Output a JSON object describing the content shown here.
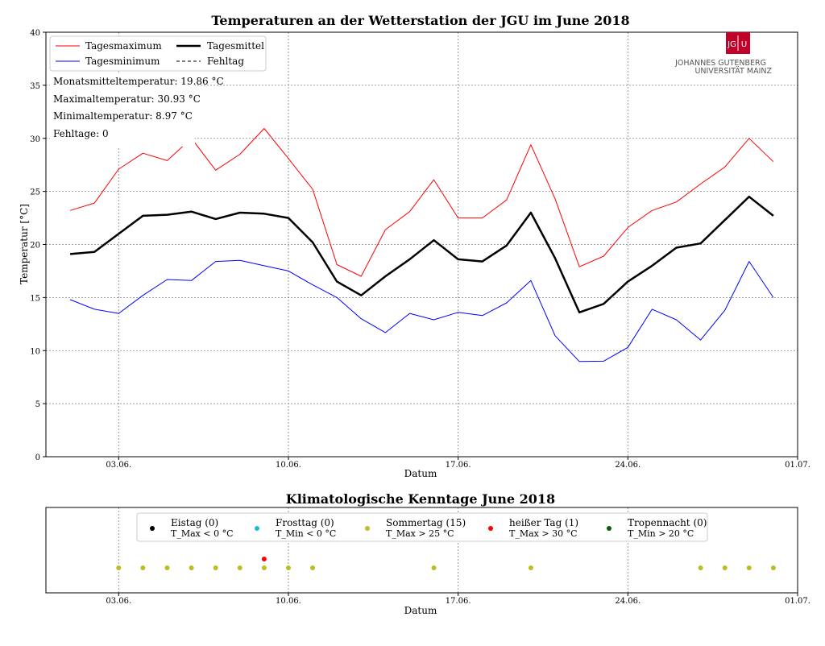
{
  "chart_data": [
    {
      "type": "line",
      "title": "Temperaturen an der Wetterstation der JGU im June 2018",
      "xlabel": "Datum",
      "ylabel": "Temperatur [°C]",
      "x_tick_labels": [
        "03.06.",
        "10.06.",
        "17.06.",
        "24.06.",
        "01.07."
      ],
      "y_ticks": [
        0,
        5,
        10,
        15,
        20,
        25,
        30,
        35,
        40
      ],
      "xlim": [
        0,
        31
      ],
      "ylim": [
        0,
        40
      ],
      "grid": true,
      "legend_position": "top-left",
      "legend": [
        {
          "label": "Tagesmaximum",
          "color": "#ff0000"
        },
        {
          "label": "Tagesmittel",
          "color": "#000000"
        },
        {
          "label": "Tagesminimum",
          "color": "#0000ff"
        },
        {
          "label": "Fehltag",
          "color": "#000000"
        }
      ],
      "stats": [
        "Monatsmitteltemperatur: 19.86 °C",
        "Maximaltemperatur: 30.93 °C",
        "Minimaltemperatur: 8.97 °C",
        "Fehltage: 0"
      ],
      "days": [
        1,
        2,
        3,
        4,
        5,
        6,
        7,
        8,
        9,
        10,
        11,
        12,
        13,
        14,
        15,
        16,
        17,
        18,
        19,
        20,
        21,
        22,
        23,
        24,
        25,
        26,
        27,
        28,
        29,
        30
      ],
      "series": [
        {
          "name": "Tagesmaximum",
          "color": "#ff0000",
          "width": 1,
          "values": [
            23.2,
            23.9,
            27.1,
            28.6,
            27.9,
            30.0,
            27.0,
            28.5,
            30.93,
            28.1,
            25.2,
            18.1,
            17.0,
            21.4,
            23.1,
            26.1,
            22.5,
            22.5,
            24.2,
            29.4,
            24.3,
            17.9,
            18.9,
            21.6,
            23.2,
            24.0,
            25.7,
            27.3,
            30.0,
            27.8
          ]
        },
        {
          "name": "Tagesmittel",
          "color": "#000000",
          "width": 2.5,
          "values": [
            19.1,
            19.3,
            21.0,
            22.7,
            22.8,
            23.1,
            22.4,
            23.0,
            22.9,
            22.5,
            20.2,
            16.5,
            15.2,
            17.0,
            18.6,
            20.4,
            18.6,
            18.4,
            19.9,
            23.0,
            18.7,
            13.6,
            14.4,
            16.5,
            18.0,
            19.7,
            20.1,
            22.3,
            24.5,
            22.7
          ]
        },
        {
          "name": "Tagesminimum",
          "color": "#0000ff",
          "width": 1,
          "values": [
            14.8,
            13.9,
            13.5,
            15.2,
            16.7,
            16.6,
            18.4,
            18.5,
            18.0,
            17.5,
            16.2,
            15.0,
            13.0,
            11.7,
            13.5,
            12.9,
            13.6,
            13.3,
            14.5,
            16.6,
            11.4,
            8.97,
            9.0,
            10.3,
            13.9,
            12.9,
            11.0,
            13.8,
            18.4,
            15.0
          ]
        }
      ]
    },
    {
      "type": "scatter",
      "title": "Klimatologische Kenntage June 2018",
      "xlabel": "Datum",
      "x_tick_labels": [
        "03.06.",
        "10.06.",
        "17.06.",
        "24.06.",
        "01.07."
      ],
      "xlim": [
        0,
        31
      ],
      "grid": true,
      "legend_position": "top",
      "legend": [
        {
          "label": "Eistag (0)",
          "condition": "T_Max < 0 °C",
          "color": "#000000"
        },
        {
          "label": "Frosttag (0)",
          "condition": "T_Min < 0 °C",
          "color": "#17becf"
        },
        {
          "label": "Sommertag (15)",
          "condition": "T_Max > 25 °C",
          "color": "#bcbd22"
        },
        {
          "label": "heißer Tag (1)",
          "condition": "T_Max > 30 °C",
          "color": "#ff0000"
        },
        {
          "label": "Tropennacht (0)",
          "condition": "T_Min > 20 °C",
          "color": "#006400"
        }
      ],
      "points": [
        {
          "category": "Sommertag",
          "days": [
            3,
            4,
            5,
            6,
            7,
            8,
            9,
            10,
            11,
            16,
            20,
            27,
            28,
            29,
            30
          ]
        },
        {
          "category": "heißer Tag",
          "days": [
            9
          ]
        }
      ]
    }
  ]
}
